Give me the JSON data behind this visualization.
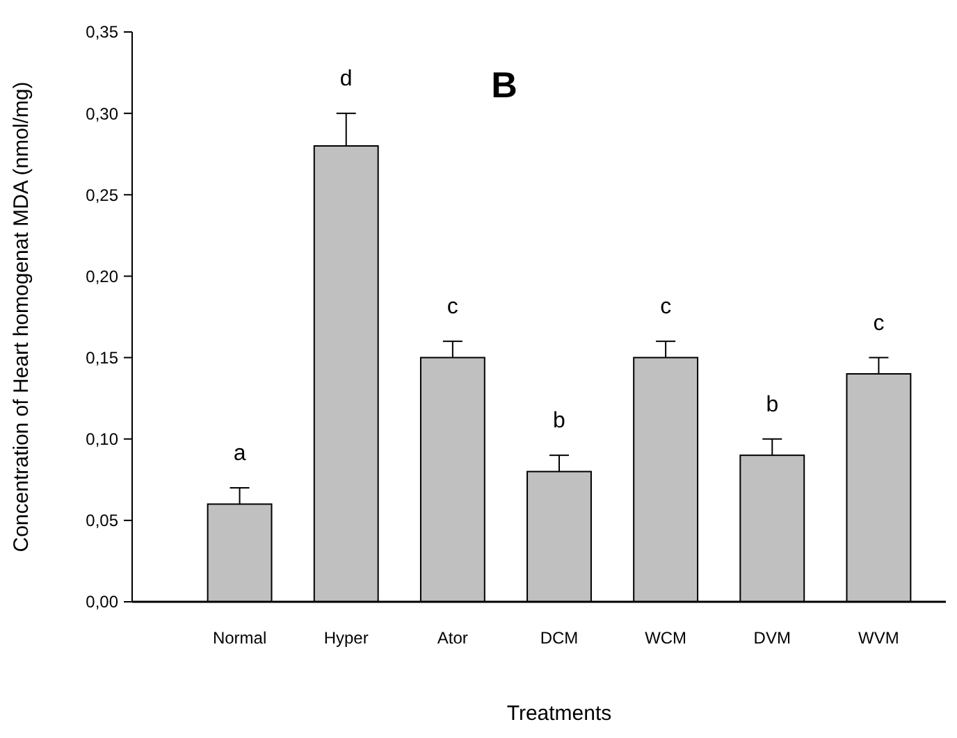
{
  "chart_data": {
    "type": "bar",
    "title": "B",
    "xlabel": "Treatments",
    "ylabel": "Concentration of Heart homogenat MDA (nmol/mg)",
    "categories": [
      "Normal",
      "Hyper",
      "Ator",
      "DCM",
      "WCM",
      "DVM",
      "WVM"
    ],
    "values": [
      0.06,
      0.28,
      0.15,
      0.08,
      0.15,
      0.09,
      0.14
    ],
    "errors": [
      0.01,
      0.02,
      0.01,
      0.01,
      0.01,
      0.01,
      0.01
    ],
    "color": "#c0c0c0",
    "ylim": [
      0,
      0.35
    ],
    "yticks": [
      {
        "value": 0,
        "label": "0,00"
      },
      {
        "value": 0.05,
        "label": "0,05"
      },
      {
        "value": 0.1,
        "label": "0,10"
      },
      {
        "value": 0.15,
        "label": "0,15"
      },
      {
        "value": 0.2,
        "label": "0,20"
      },
      {
        "value": 0.25,
        "label": "0,25"
      },
      {
        "value": 0.3,
        "label": "0,30"
      },
      {
        "value": 0.35,
        "label": "0,35"
      }
    ],
    "annotations": [
      {
        "text": "a",
        "x": "Normal",
        "y": 0.07
      },
      {
        "text": "d",
        "x": "Hyper",
        "y": 0.3
      },
      {
        "text": "c",
        "x": "Ator",
        "y": 0.16
      },
      {
        "text": "b",
        "x": "DCM",
        "y": 0.09
      },
      {
        "text": "c",
        "x": "WCM",
        "y": 0.16
      },
      {
        "text": "b",
        "x": "DVM",
        "y": 0.1
      },
      {
        "text": "c",
        "x": "WVM",
        "y": 0.15
      }
    ],
    "grid": false
  }
}
